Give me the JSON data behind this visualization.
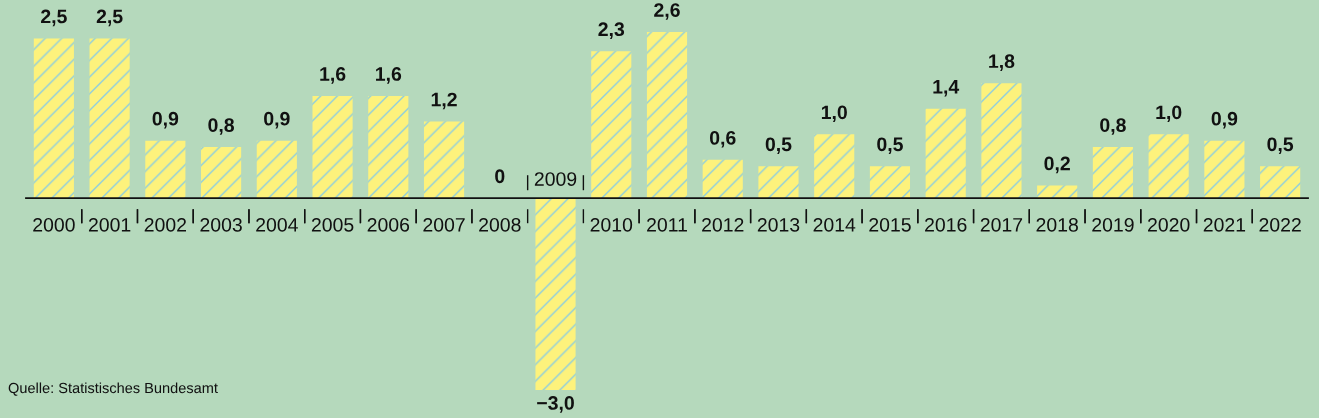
{
  "chart_data": {
    "type": "bar",
    "categories": [
      "2000",
      "2001",
      "2002",
      "2003",
      "2004",
      "2005",
      "2006",
      "2007",
      "2008",
      "2009",
      "2010",
      "2011",
      "2012",
      "2013",
      "2014",
      "2015",
      "2016",
      "2017",
      "2018",
      "2019",
      "2020",
      "2021",
      "2022"
    ],
    "values": [
      2.5,
      2.5,
      0.9,
      0.8,
      0.9,
      1.6,
      1.6,
      1.2,
      0,
      -3.0,
      2.3,
      2.6,
      0.6,
      0.5,
      1.0,
      0.5,
      1.4,
      1.8,
      0.2,
      0.8,
      1.0,
      0.9,
      0.5
    ],
    "value_labels": [
      "2,5",
      "2,5",
      "0,9",
      "0,8",
      "0,9",
      "1,6",
      "1,6",
      "1,2",
      "0",
      "−3,0",
      "2,3",
      "2,6",
      "0,6",
      "0,5",
      "1,0",
      "0,5",
      "1,4",
      "1,8",
      "0,2",
      "0,8",
      "1,0",
      "0,9",
      "0,5"
    ],
    "color": "#fdf27c",
    "tick_labels": "x",
    "annotations": [
      "Quelle: Statistisches Bundesamt"
    ]
  }
}
